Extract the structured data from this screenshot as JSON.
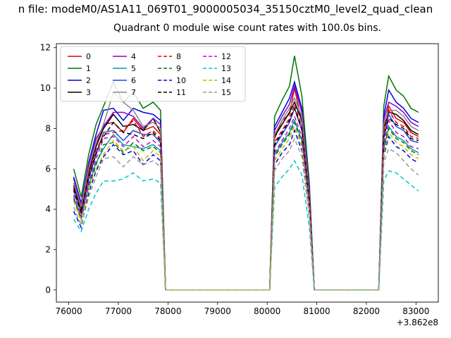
{
  "window": {
    "title_bar": "n file: modeM0/AS1A11_069T01_9000005034_35150cztM0_level2_quad_clean"
  },
  "figure": {
    "title": "Quadrant 0 module wise count rates with 100.0s bins."
  },
  "chart_data": {
    "type": "line",
    "title": "Quadrant 0 module wise count rates with 100.0s bins.",
    "xlabel": "",
    "ylabel": "",
    "x_axis_offset_text": "+3.862e8",
    "xlim": [
      75750,
      83450
    ],
    "ylim": [
      -0.6,
      12.2
    ],
    "xticks": [
      76000,
      77000,
      78000,
      79000,
      80000,
      81000,
      82000,
      83000
    ],
    "yticks": [
      0,
      2,
      4,
      6,
      8,
      10,
      12
    ],
    "grid": false,
    "legend": {
      "position": "upper-left",
      "columns": 4,
      "fill_order": "column-major"
    },
    "x": [
      76100,
      76250,
      76400,
      76550,
      76700,
      76900,
      77100,
      77300,
      77500,
      77700,
      77850,
      77950,
      80050,
      80150,
      80300,
      80450,
      80550,
      80700,
      80850,
      80950,
      82250,
      82350,
      82450,
      82600,
      82750,
      82900,
      83050
    ],
    "series": [
      {
        "name": "0",
        "color": "#dd0000",
        "dash": false,
        "values": [
          5.1,
          4.0,
          5.8,
          7.1,
          8.2,
          8.3,
          7.8,
          8.5,
          7.9,
          8.1,
          7.7,
          0,
          0,
          7.5,
          8.4,
          8.7,
          10.0,
          8.3,
          4.6,
          0,
          0,
          7.9,
          9.1,
          8.5,
          8.3,
          7.8,
          7.6
        ]
      },
      {
        "name": "1",
        "color": "#007700",
        "dash": false,
        "values": [
          6.0,
          4.6,
          6.7,
          8.2,
          9.1,
          10.3,
          9.3,
          9.8,
          9.0,
          9.3,
          8.9,
          0,
          0,
          8.6,
          9.4,
          10.1,
          11.6,
          9.6,
          5.3,
          0,
          0,
          9.1,
          10.6,
          9.9,
          9.6,
          9.0,
          8.8
        ]
      },
      {
        "name": "2",
        "color": "#0000dd",
        "dash": false,
        "values": [
          5.6,
          4.3,
          6.3,
          7.7,
          8.9,
          9.0,
          8.4,
          9.0,
          8.8,
          8.7,
          8.4,
          0,
          0,
          8.1,
          8.8,
          9.5,
          10.3,
          9.0,
          5.0,
          0,
          0,
          8.6,
          9.9,
          9.3,
          9.0,
          8.5,
          8.3
        ]
      },
      {
        "name": "3",
        "color": "#000000",
        "dash": false,
        "values": [
          5.2,
          4.0,
          5.9,
          7.1,
          8.0,
          8.7,
          8.1,
          8.2,
          7.9,
          8.5,
          7.8,
          0,
          0,
          7.6,
          8.2,
          8.8,
          9.3,
          8.4,
          4.6,
          0,
          0,
          8.0,
          8.8,
          8.7,
          8.4,
          7.9,
          7.7
        ]
      },
      {
        "name": "4",
        "color": "#8800cc",
        "dash": false,
        "values": [
          5.5,
          4.2,
          6.2,
          7.5,
          8.1,
          8.8,
          8.8,
          8.6,
          8.0,
          8.5,
          8.2,
          0,
          0,
          7.9,
          8.6,
          9.2,
          10.1,
          8.8,
          4.8,
          0,
          0,
          8.4,
          9.3,
          9.1,
          8.8,
          8.3,
          8.1
        ]
      },
      {
        "name": "5",
        "color": "#00a0a0",
        "dash": false,
        "values": [
          4.6,
          3.6,
          5.2,
          6.3,
          7.0,
          7.7,
          7.2,
          7.1,
          7.0,
          7.2,
          6.9,
          0,
          0,
          6.7,
          7.3,
          7.8,
          8.4,
          7.4,
          4.1,
          0,
          0,
          7.0,
          8.1,
          7.6,
          7.4,
          7.0,
          6.8
        ]
      },
      {
        "name": "6",
        "color": "#2244dd",
        "dash": false,
        "values": [
          4.9,
          3.8,
          5.5,
          6.7,
          7.8,
          7.9,
          7.4,
          7.9,
          7.7,
          7.7,
          7.3,
          0,
          0,
          7.1,
          7.7,
          8.3,
          9.0,
          7.9,
          4.3,
          0,
          0,
          7.5,
          8.7,
          8.1,
          7.9,
          7.4,
          7.3
        ]
      },
      {
        "name": "7",
        "color": "#888888",
        "dash": false,
        "values": [
          5.3,
          4.1,
          6.0,
          7.3,
          8.2,
          9.8,
          9.3,
          8.9,
          8.1,
          8.3,
          8.0,
          0,
          0,
          7.7,
          8.4,
          9.0,
          9.5,
          8.6,
          4.7,
          0,
          0,
          8.2,
          8.9,
          8.9,
          8.6,
          8.1,
          7.9
        ]
      },
      {
        "name": "8",
        "color": "#dd0000",
        "dash": true,
        "values": [
          5.0,
          3.9,
          5.7,
          6.9,
          7.7,
          7.8,
          7.9,
          8.4,
          7.6,
          7.9,
          7.5,
          0,
          0,
          7.3,
          7.9,
          8.5,
          9.2,
          8.1,
          4.5,
          0,
          0,
          7.7,
          8.9,
          8.3,
          8.1,
          7.6,
          7.5
        ]
      },
      {
        "name": "9",
        "color": "#007700",
        "dash": true,
        "values": [
          4.5,
          3.5,
          5.1,
          6.2,
          7.2,
          7.3,
          6.8,
          7.3,
          6.9,
          7.1,
          6.8,
          0,
          0,
          6.6,
          7.2,
          7.7,
          8.3,
          7.3,
          4.0,
          0,
          0,
          6.9,
          8.0,
          7.5,
          7.3,
          6.9,
          6.7
        ]
      },
      {
        "name": "10",
        "color": "#0000dd",
        "dash": true,
        "values": [
          3.9,
          3.1,
          4.8,
          5.9,
          6.6,
          7.2,
          6.7,
          6.9,
          6.2,
          6.7,
          6.4,
          0,
          0,
          6.2,
          6.8,
          7.2,
          7.9,
          6.9,
          3.8,
          0,
          0,
          6.6,
          7.6,
          7.1,
          6.9,
          6.5,
          6.3
        ]
      },
      {
        "name": "11",
        "color": "#000000",
        "dash": true,
        "values": [
          5.0,
          3.8,
          5.6,
          6.8,
          7.6,
          8.3,
          7.8,
          7.7,
          7.5,
          7.8,
          7.4,
          0,
          0,
          7.2,
          7.8,
          8.4,
          9.0,
          8.0,
          4.4,
          0,
          0,
          7.6,
          8.5,
          8.2,
          8.0,
          7.5,
          7.4
        ]
      },
      {
        "name": "12",
        "color": "#cc00cc",
        "dash": true,
        "values": [
          4.7,
          3.6,
          5.3,
          6.5,
          7.5,
          7.6,
          7.1,
          7.6,
          7.1,
          7.4,
          7.1,
          0,
          0,
          6.8,
          7.4,
          8.0,
          8.6,
          7.6,
          4.2,
          0,
          0,
          7.2,
          8.4,
          7.8,
          7.6,
          7.1,
          7.0
        ]
      },
      {
        "name": "13",
        "color": "#00c8c8",
        "dash": true,
        "values": [
          3.5,
          2.9,
          4.0,
          4.8,
          5.4,
          5.4,
          5.5,
          5.8,
          5.4,
          5.5,
          5.3,
          0,
          0,
          5.1,
          5.6,
          6.0,
          6.4,
          5.7,
          3.1,
          0,
          0,
          5.4,
          5.9,
          5.8,
          5.5,
          5.2,
          4.9
        ]
      },
      {
        "name": "14",
        "color": "#bbbb00",
        "dash": true,
        "values": [
          4.4,
          3.4,
          5.0,
          6.0,
          6.7,
          7.4,
          6.9,
          7.1,
          6.4,
          6.9,
          6.6,
          0,
          0,
          6.4,
          7.0,
          7.5,
          8.1,
          7.1,
          3.9,
          0,
          0,
          6.7,
          7.8,
          7.3,
          7.1,
          6.7,
          6.5
        ]
      },
      {
        "name": "15",
        "color": "#999999",
        "dash": true,
        "values": [
          4.1,
          3.2,
          4.6,
          5.6,
          6.5,
          6.6,
          6.1,
          6.6,
          6.2,
          6.4,
          6.1,
          0,
          0,
          5.9,
          6.5,
          6.9,
          7.5,
          6.6,
          3.6,
          0,
          0,
          6.3,
          7.0,
          6.8,
          6.4,
          6.0,
          5.7
        ]
      }
    ]
  }
}
